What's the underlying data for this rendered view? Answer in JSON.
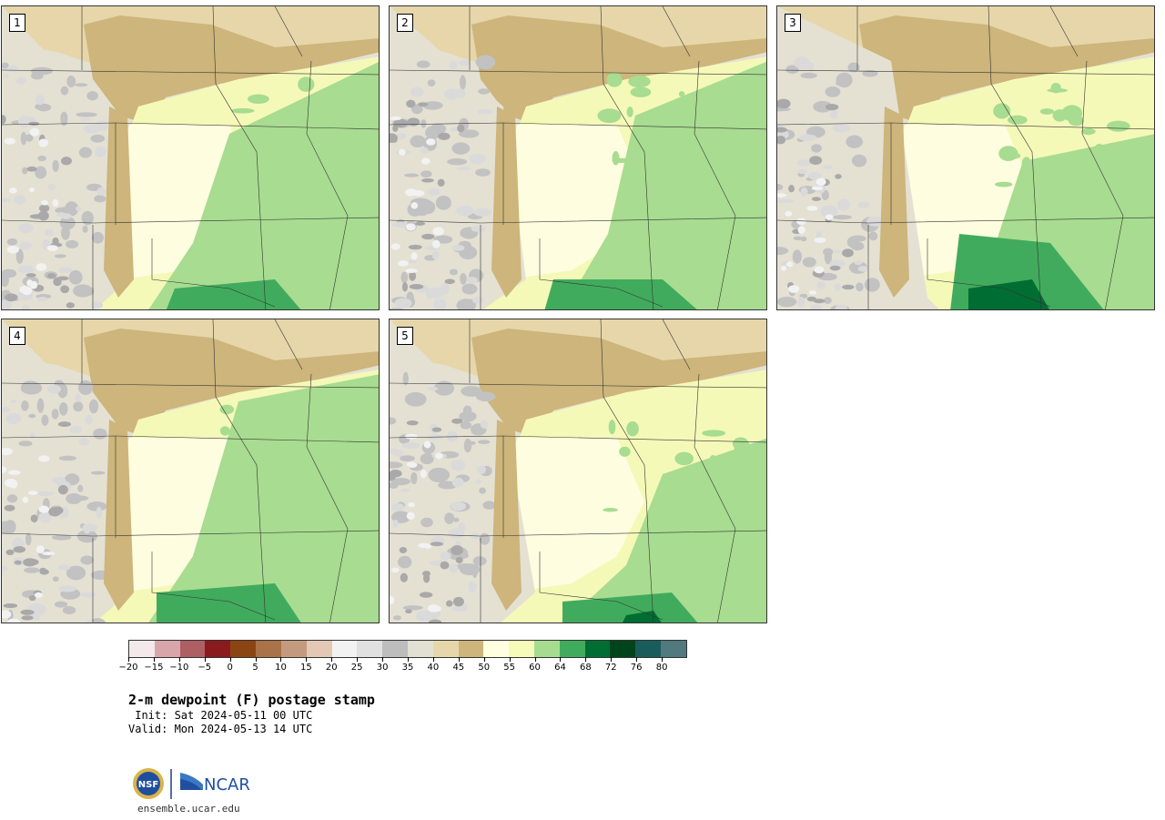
{
  "panels": [
    {
      "label": "1"
    },
    {
      "label": "2"
    },
    {
      "label": "3"
    },
    {
      "label": "4"
    },
    {
      "label": "5"
    }
  ],
  "colorbar": {
    "colors": [
      "#f3e9ea",
      "#d8a5ab",
      "#ae5f63",
      "#8b1a1f",
      "#8b4513",
      "#aa7248",
      "#c49a7e",
      "#e3c8b5",
      "#f2f2f2",
      "#e0e0e0",
      "#bdbdbd",
      "#e2e0d2",
      "#e6d6aa",
      "#cdb57b",
      "#ffffe0",
      "#f7fbb9",
      "#a6dc90",
      "#41ab5d",
      "#006d32",
      "#00441b",
      "#1a5c5c",
      "#507a7d"
    ],
    "tick_values": [
      "−20",
      "−15",
      "−10",
      "−5",
      "0",
      "5",
      "10",
      "15",
      "20",
      "25",
      "30",
      "35",
      "40",
      "45",
      "50",
      "55",
      "60",
      "64",
      "68",
      "72",
      "76",
      "80"
    ]
  },
  "title": "2-m dewpoint (F) postage stamp",
  "init": " Init: Sat 2024-05-11 00 UTC",
  "valid": "Valid: Mon 2024-05-13 14 UTC",
  "logos": {
    "nsf": "NSF",
    "ncar": "NCAR"
  },
  "site": "ensemble.ucar.edu"
}
